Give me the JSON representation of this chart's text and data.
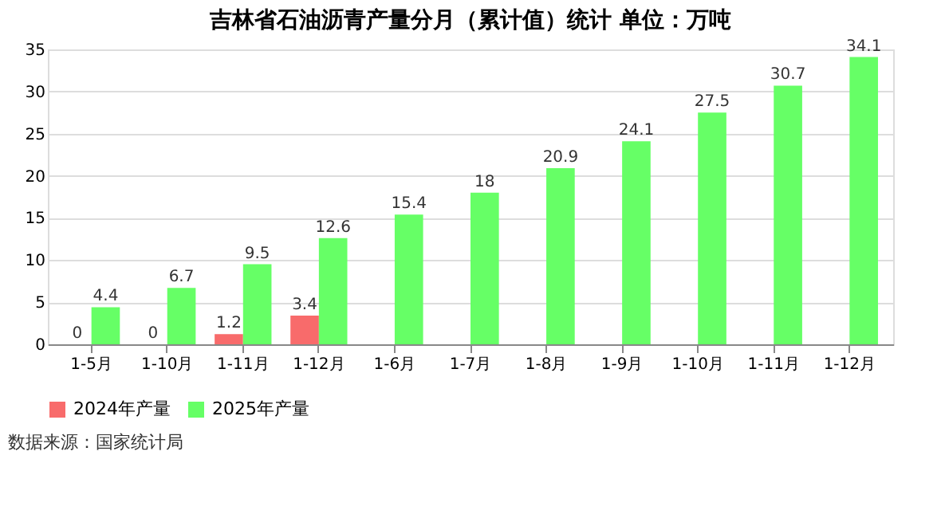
{
  "chart_data": {
    "type": "bar",
    "title": "吉林省石油沥青产量分月（累计值）统计 单位：万吨",
    "categories": [
      "1-5月",
      "1-10月",
      "1-11月",
      "1-12月",
      "1-6月",
      "1-7月",
      "1-8月",
      "1-9月",
      "1-10月",
      "1-11月",
      "1-12月"
    ],
    "series": [
      {
        "name": "2024年产量",
        "color": "#f86b6b",
        "values": [
          0,
          0,
          1.2,
          3.4,
          null,
          null,
          null,
          null,
          null,
          null,
          null
        ]
      },
      {
        "name": "2025年产量",
        "color": "#66ff66",
        "values": [
          4.4,
          6.7,
          9.5,
          12.6,
          15.4,
          18,
          20.9,
          24.1,
          27.5,
          30.7,
          34.1
        ]
      }
    ],
    "ylim": [
      0,
      35
    ],
    "yticks": [
      0,
      5,
      10,
      15,
      20,
      25,
      30,
      35
    ],
    "grid": "y",
    "legend": "bottom",
    "data_labels": true,
    "annotations": [
      "数据来源：国家统计局"
    ]
  }
}
